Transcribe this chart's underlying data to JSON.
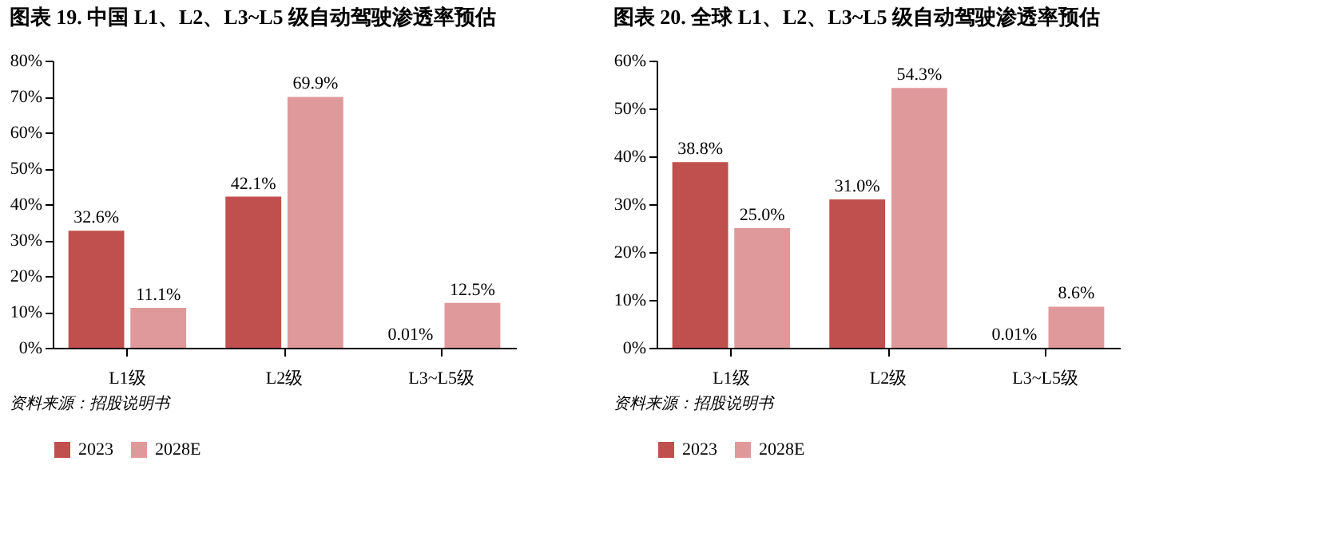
{
  "chart_data": [
    {
      "type": "bar",
      "title": "图表 19. 中国 L1、L2、L3~L5 级自动驾驶渗透率预估",
      "categories": [
        "L1级",
        "L2级",
        "L3~L5级"
      ],
      "series": [
        {
          "name": "2023",
          "color": "#c0504d",
          "values": [
            32.6,
            42.1,
            0.01
          ],
          "value_labels": [
            "32.6%",
            "42.1%",
            "0.01%"
          ]
        },
        {
          "name": "2028E",
          "color": "#e0999b",
          "values": [
            11.1,
            69.9,
            12.5
          ],
          "value_labels": [
            "11.1%",
            "69.9%",
            "12.5%"
          ]
        }
      ],
      "ylim": [
        0,
        80
      ],
      "yticks": [
        {
          "value": 0,
          "label": "0%"
        },
        {
          "value": 10,
          "label": "10%"
        },
        {
          "value": 20,
          "label": "20%"
        },
        {
          "value": 30,
          "label": "30%"
        },
        {
          "value": 40,
          "label": "40%"
        },
        {
          "value": 50,
          "label": "50%"
        },
        {
          "value": 60,
          "label": "60%"
        },
        {
          "value": 70,
          "label": "70%"
        },
        {
          "value": 80,
          "label": "80%"
        }
      ],
      "legend": "bottom",
      "grid": false,
      "annotations": [
        "资料来源：招股说明书"
      ]
    },
    {
      "type": "bar",
      "title": "图表 20. 全球 L1、L2、L3~L5 级自动驾驶渗透率预估",
      "categories": [
        "L1级",
        "L2级",
        "L3~L5级"
      ],
      "series": [
        {
          "name": "2023",
          "color": "#c0504d",
          "values": [
            38.8,
            31.0,
            0.01
          ],
          "value_labels": [
            "38.8%",
            "31.0%",
            "0.01%"
          ]
        },
        {
          "name": "2028E",
          "color": "#e0999b",
          "values": [
            25.0,
            54.3,
            8.6
          ],
          "value_labels": [
            "25.0%",
            "54.3%",
            "8.6%"
          ]
        }
      ],
      "ylim": [
        0,
        60
      ],
      "yticks": [
        {
          "value": 0,
          "label": "0%"
        },
        {
          "value": 10,
          "label": "10%"
        },
        {
          "value": 20,
          "label": "20%"
        },
        {
          "value": 30,
          "label": "30%"
        },
        {
          "value": 40,
          "label": "40%"
        },
        {
          "value": 50,
          "label": "50%"
        },
        {
          "value": 60,
          "label": "60%"
        }
      ],
      "legend": "bottom",
      "grid": false,
      "annotations": [
        "资料来源：招股说明书"
      ]
    }
  ]
}
